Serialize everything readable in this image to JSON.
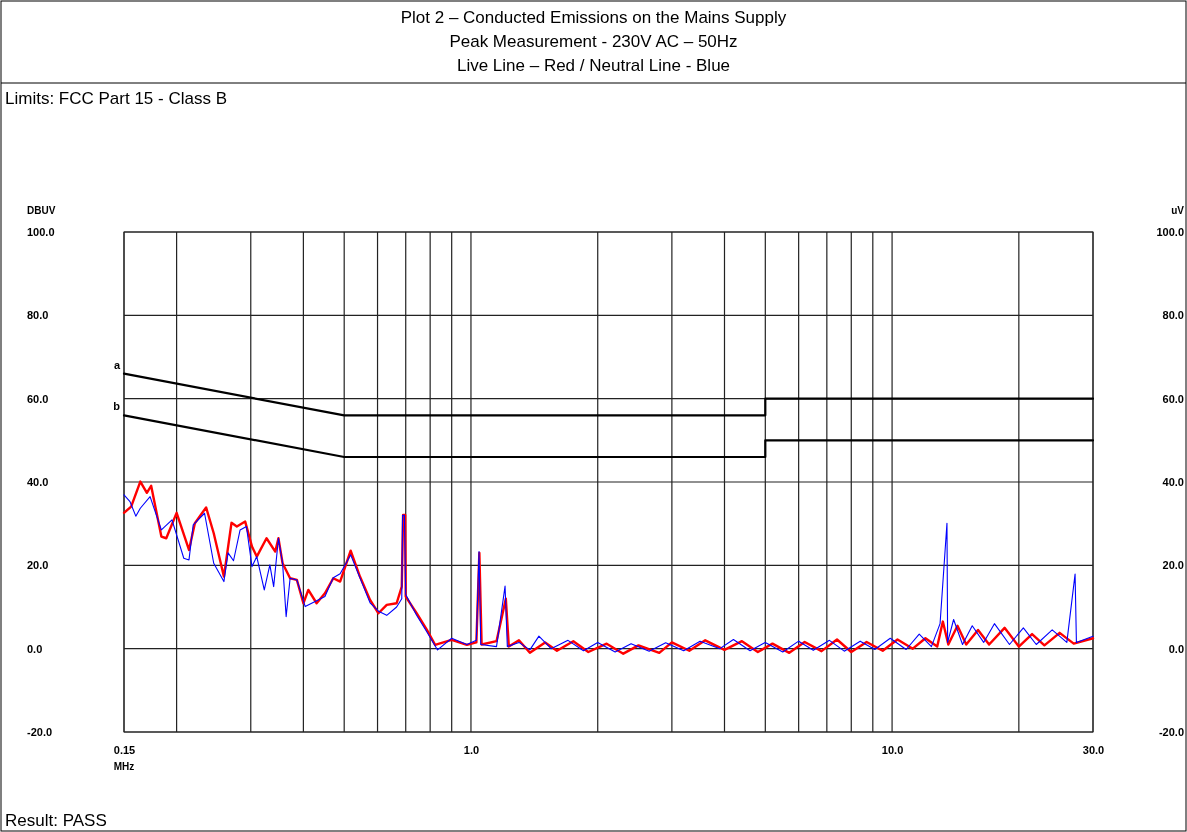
{
  "chart_data": {
    "type": "line",
    "title": "Plot 2 – Conducted Emissions on the Mains Supply",
    "subtitle": "Peak Measurement - 230V AC – 50Hz\nLive Line – Red / Neutral Line - Blue",
    "annotations": [
      "Limits: FCC Part 15 - Class B",
      "Result: PASS"
    ],
    "xlabel": "MHz",
    "ylabel": "DBUV",
    "y2label": "uV",
    "log": "x",
    "grid": true,
    "xlim": [
      0.15,
      30
    ],
    "xticks": [
      {
        "value": 0.15,
        "label": "0.15"
      },
      {
        "value": 0.2,
        "label": null
      },
      {
        "value": 0.3,
        "label": null
      },
      {
        "value": 0.4,
        "label": null
      },
      {
        "value": 0.5,
        "label": null
      },
      {
        "value": 0.6,
        "label": null
      },
      {
        "value": 0.7,
        "label": null
      },
      {
        "value": 0.8,
        "label": null
      },
      {
        "value": 0.9,
        "label": null
      },
      {
        "value": 1,
        "label": "1.0"
      },
      {
        "value": 2,
        "label": null
      },
      {
        "value": 3,
        "label": null
      },
      {
        "value": 4,
        "label": null
      },
      {
        "value": 5,
        "label": null
      },
      {
        "value": 6,
        "label": null
      },
      {
        "value": 7,
        "label": null
      },
      {
        "value": 8,
        "label": null
      },
      {
        "value": 9,
        "label": null
      },
      {
        "value": 10,
        "label": "10.0"
      },
      {
        "value": 20,
        "label": null
      },
      {
        "value": 30,
        "label": "30.0"
      }
    ],
    "ylim": [
      -20,
      100
    ],
    "yticks": [
      {
        "value": -20,
        "label": "-20.0"
      },
      {
        "value": 0,
        "label": "0.0"
      },
      {
        "value": 20,
        "label": "20.0"
      },
      {
        "value": 40,
        "label": "40.0"
      },
      {
        "value": 60,
        "label": "60.0"
      },
      {
        "value": 80,
        "label": "80.0"
      },
      {
        "value": 100,
        "label": "100.0"
      }
    ],
    "y2lim": [
      -20,
      100
    ],
    "y2ticks": [
      {
        "value": -20,
        "label": "-20.0"
      },
      {
        "value": 0,
        "label": "0.0"
      },
      {
        "value": 20,
        "label": "20.0"
      },
      {
        "value": 40,
        "label": "40.0"
      },
      {
        "value": 60,
        "label": "60.0"
      },
      {
        "value": 80,
        "label": "80.0"
      },
      {
        "value": 100,
        "label": "100.0"
      }
    ],
    "series": [
      {
        "name": "a",
        "color": "#000000",
        "x": [
          0.15,
          0.5,
          5,
          5,
          30
        ],
        "values": [
          66,
          56,
          56,
          60,
          60
        ]
      },
      {
        "name": "b",
        "color": "#000000",
        "x": [
          0.15,
          0.5,
          5,
          5,
          30
        ],
        "values": [
          56,
          46,
          46,
          50,
          50
        ]
      },
      {
        "color": "#ff0000",
        "x": [
          0.15,
          0.156,
          0.164,
          0.17,
          0.174,
          0.184,
          0.189,
          0.2,
          0.214,
          0.221,
          0.235,
          0.245,
          0.259,
          0.27,
          0.278,
          0.291,
          0.302,
          0.31,
          0.327,
          0.343,
          0.349,
          0.357,
          0.372,
          0.386,
          0.4,
          0.411,
          0.43,
          0.45,
          0.471,
          0.489,
          0.518,
          0.545,
          0.576,
          0.603,
          0.631,
          0.666,
          0.685,
          0.69,
          0.698,
          0.7,
          0.743,
          0.786,
          0.822,
          0.9,
          0.978,
          1.03,
          1.047,
          1.06,
          1.15,
          1.21,
          1.23,
          1.3,
          1.38,
          1.5,
          1.6,
          1.75,
          1.9,
          2.1,
          2.3,
          2.5,
          2.8,
          3.0,
          3.3,
          3.6,
          4.0,
          4.4,
          4.8,
          5.2,
          5.7,
          6.2,
          6.8,
          7.4,
          8.0,
          8.7,
          9.5,
          10.3,
          11.2,
          12.0,
          12.8,
          13.2,
          13.6,
          14.3,
          15.0,
          16.0,
          17.0,
          18.5,
          20.0,
          21.5,
          23.0,
          25.0,
          27.0,
          30.0
        ],
        "values": [
          32.6,
          34.1,
          40.1,
          37.4,
          39.1,
          26.9,
          26.5,
          32.6,
          23.7,
          30.1,
          33.9,
          27.7,
          17.3,
          30.2,
          29.3,
          30.5,
          24.5,
          22.1,
          26.5,
          23.3,
          26.5,
          20.5,
          16.9,
          16.5,
          10.9,
          14.1,
          10.9,
          13.3,
          16.9,
          16.1,
          23.5,
          17.3,
          11.7,
          8.5,
          10.5,
          10.9,
          14.9,
          32.1,
          32.1,
          12.5,
          8.5,
          4.5,
          0.9,
          2.1,
          0.9,
          1.5,
          23.0,
          1.0,
          1.8,
          12.0,
          0.5,
          2.0,
          -1.0,
          1.5,
          -0.5,
          1.8,
          -0.8,
          1.2,
          -1.2,
          0.8,
          -1.0,
          1.5,
          -0.5,
          2.0,
          -0.3,
          1.8,
          -0.8,
          1.2,
          -1.0,
          1.6,
          -0.6,
          2.2,
          -0.8,
          1.6,
          -0.5,
          2.2,
          0.0,
          2.5,
          0.5,
          6.5,
          1.0,
          5.5,
          1.0,
          4.5,
          1.0,
          5.0,
          0.5,
          3.5,
          0.8,
          3.8,
          1.2,
          2.5
        ]
      },
      {
        "color": "#0000ff",
        "x": [
          0.15,
          0.155,
          0.16,
          0.164,
          0.173,
          0.184,
          0.195,
          0.208,
          0.214,
          0.219,
          0.233,
          0.245,
          0.259,
          0.265,
          0.273,
          0.283,
          0.293,
          0.302,
          0.31,
          0.323,
          0.333,
          0.34,
          0.349,
          0.357,
          0.364,
          0.372,
          0.386,
          0.404,
          0.43,
          0.45,
          0.471,
          0.489,
          0.518,
          0.545,
          0.576,
          0.603,
          0.631,
          0.666,
          0.685,
          0.688,
          0.695,
          0.7,
          0.743,
          0.786,
          0.833,
          0.9,
          0.978,
          1.03,
          1.045,
          1.055,
          1.15,
          1.205,
          1.22,
          1.3,
          1.38,
          1.45,
          1.55,
          1.7,
          1.85,
          2.0,
          2.2,
          2.4,
          2.65,
          2.9,
          3.2,
          3.5,
          3.9,
          4.2,
          4.6,
          5.0,
          5.5,
          6.0,
          6.5,
          7.1,
          7.7,
          8.4,
          9.1,
          9.9,
          10.8,
          11.6,
          12.4,
          13.0,
          13.5,
          13.55,
          14.0,
          14.7,
          15.5,
          16.5,
          17.5,
          19.0,
          20.5,
          22.0,
          24.0,
          26.0,
          27.2,
          27.4,
          30.0
        ],
        "values": [
          36.9,
          35.3,
          31.8,
          33.7,
          36.5,
          28.5,
          30.9,
          21.7,
          21.3,
          29.7,
          32.5,
          20.5,
          16.1,
          23.0,
          21.1,
          28.5,
          29.3,
          19.7,
          22.1,
          14.1,
          20.1,
          14.9,
          26.5,
          20.5,
          7.7,
          16.9,
          16.5,
          10.1,
          11.5,
          12.5,
          17.0,
          18.0,
          22.5,
          17.0,
          11.0,
          9.0,
          8.0,
          10.0,
          12.0,
          32.0,
          32.0,
          13.0,
          8.0,
          4.0,
          -0.3,
          2.5,
          1.0,
          2.0,
          23.3,
          1.0,
          0.5,
          15.0,
          0.5,
          1.5,
          -0.3,
          3.0,
          0.0,
          2.0,
          -0.5,
          1.5,
          -0.8,
          1.2,
          -0.6,
          1.4,
          -0.5,
          1.8,
          0.0,
          2.2,
          -0.5,
          1.5,
          -0.8,
          1.8,
          -0.4,
          2.0,
          -0.6,
          1.8,
          -0.2,
          2.5,
          -0.2,
          3.5,
          0.5,
          6.0,
          30.1,
          1.5,
          7.0,
          1.0,
          5.5,
          1.5,
          6.0,
          1.0,
          5.0,
          1.0,
          4.5,
          1.5,
          17.9,
          1.5,
          3.0
        ]
      }
    ]
  }
}
